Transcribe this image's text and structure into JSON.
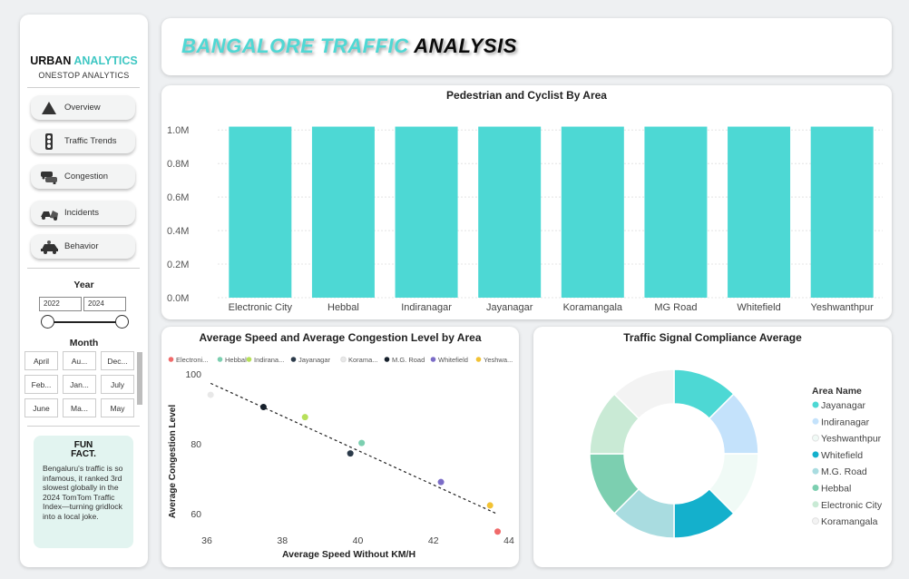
{
  "sidebar": {
    "brand_main": "URBAN",
    "brand_accent": "ANALYTICS",
    "brand_sub": "ONESTOP ANALYTICS",
    "nav": [
      {
        "label": "Overview",
        "icon": "warning-triangle-icon"
      },
      {
        "label": "Traffic Trends",
        "icon": "traffic-light-icon"
      },
      {
        "label": "Congestion",
        "icon": "car-jam-icon"
      },
      {
        "label": "Incidents",
        "icon": "car-crash-icon"
      },
      {
        "label": "Behavior",
        "icon": "driver-car-icon"
      }
    ],
    "year_title": "Year",
    "year_from": "2022",
    "year_to": "2024",
    "month_title": "Month",
    "months": [
      "April",
      "Au...",
      "Dec...",
      "Feb...",
      "Jan...",
      "July",
      "June",
      "Ma...",
      "May"
    ],
    "fun_fact_title_1": "FUN",
    "fun_fact_title_2": "FACT.",
    "fun_fact_text": "Bengaluru's traffic is so infamous, it ranked 3rd slowest globally in the 2024 TomTom Traffic Index—turning gridlock into a local joke."
  },
  "header": {
    "title_part1": "BANGALORE TRAFFIC",
    "title_part2": "ANALYSIS"
  },
  "colors": {
    "accent": "#4dd8d4",
    "bar": "#4dd8d4"
  },
  "chart_data": [
    {
      "type": "bar",
      "title": "Pedestrian and Cyclist By Area",
      "categories": [
        "Electronic City",
        "Hebbal",
        "Indiranagar",
        "Jayanagar",
        "Koramangala",
        "MG Road",
        "Whitefield",
        "Yeshwanthpur"
      ],
      "values": [
        1020000,
        1020000,
        1020000,
        1020000,
        1020000,
        1020000,
        1020000,
        1020000
      ],
      "yticks": [
        "0.0M",
        "0.2M",
        "0.4M",
        "0.6M",
        "0.8M",
        "1.0M"
      ],
      "ylim": [
        0,
        1050000
      ],
      "grid": true
    },
    {
      "type": "scatter",
      "title": "Average Speed and Average Congestion Level by Area",
      "xlabel": "Average Speed Without KM/H",
      "ylabel": "Average Congestion Level",
      "xlim": [
        36,
        44
      ],
      "ylim": [
        55,
        100
      ],
      "xticks": [
        36,
        38,
        40,
        42,
        44
      ],
      "yticks": [
        60,
        80,
        100
      ],
      "legend_position": "top",
      "series": [
        {
          "name": "Electroni...",
          "legend_label": "Electroni...",
          "color": "#f06a6a",
          "x": 43.7,
          "y": 54.8
        },
        {
          "name": "Hebbal",
          "legend_label": "Hebbal",
          "color": "#7ccfb0",
          "x": 40.1,
          "y": 80.2
        },
        {
          "name": "Indirana...",
          "legend_label": "Indirana...",
          "color": "#b7e05a",
          "x": 38.6,
          "y": 87.6
        },
        {
          "name": "Jayanagar",
          "legend_label": "Jayanagar",
          "color": "#2b3a4a",
          "x": 39.8,
          "y": 77.2
        },
        {
          "name": "Korama...",
          "legend_label": "Korama...",
          "color": "#e8e8e8",
          "x": 36.1,
          "y": 94.0
        },
        {
          "name": "M.G. Road",
          "legend_label": "M.G. Road",
          "color": "#16202c",
          "x": 37.5,
          "y": 90.5
        },
        {
          "name": "Whitefield",
          "legend_label": "Whitefield",
          "color": "#7b6cc7",
          "x": 42.2,
          "y": 69.0
        },
        {
          "name": "Yeshwa...",
          "legend_label": "Yeshwa...",
          "color": "#f2c233",
          "x": 43.5,
          "y": 62.3
        }
      ],
      "trendline": {
        "x": [
          36.1,
          43.7
        ],
        "y": [
          97.3,
          59.8
        ]
      }
    },
    {
      "type": "pie",
      "title": "Traffic Signal Compliance Average",
      "legend_title": "Area Name",
      "labels": [
        "Jayanagar",
        "Indiranagar",
        "Yeshwanthpur",
        "Whitefield",
        "M.G. Road",
        "Hebbal",
        "Electronic City",
        "Koramangala"
      ],
      "values": [
        12.5,
        12.5,
        12.5,
        12.5,
        12.5,
        12.5,
        12.5,
        12.5
      ],
      "colors": [
        "#4dd8d4",
        "#c4e2fb",
        "#f0faf6",
        "#14b0cc",
        "#a9dce0",
        "#7ccfb0",
        "#c9ead5",
        "#f3f3f3"
      ],
      "donut": true,
      "legend_position": "right"
    }
  ]
}
